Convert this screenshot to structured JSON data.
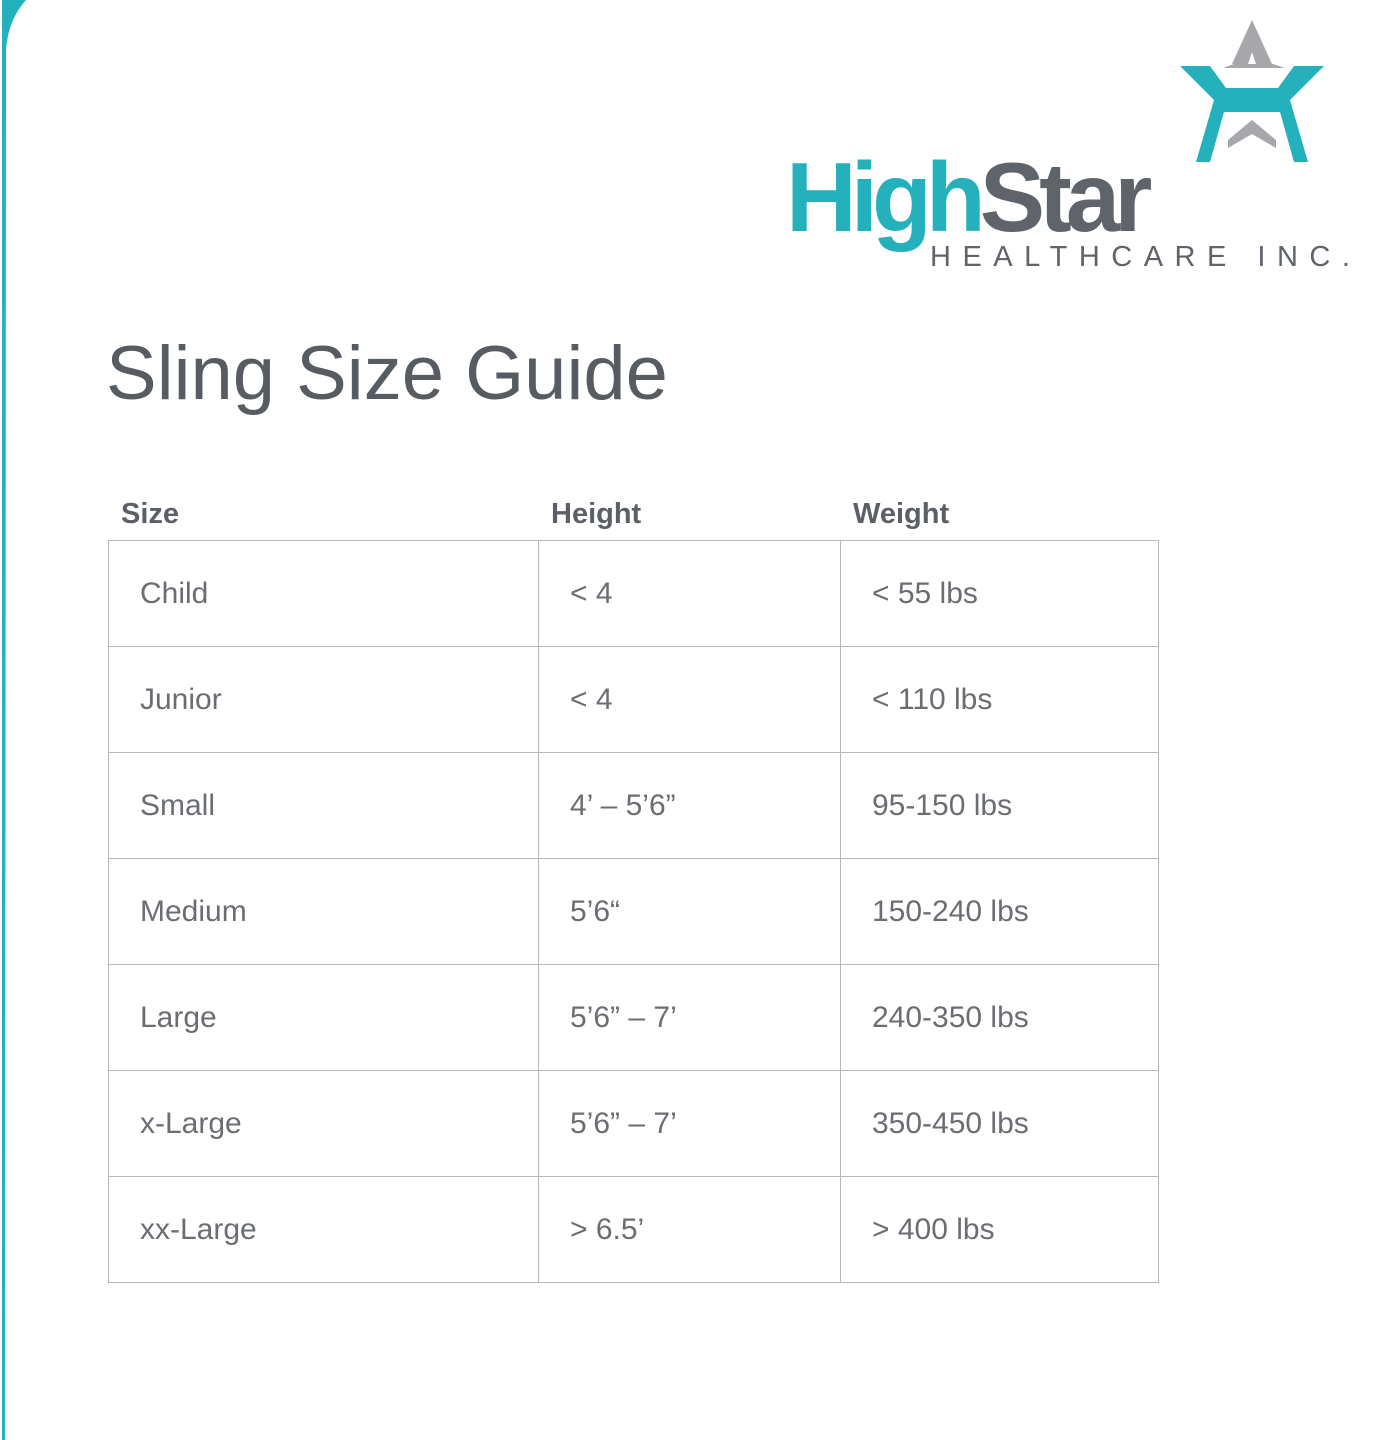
{
  "logo": {
    "brand_part1": "High",
    "brand_part2": "Star",
    "subtitle": "HEALTHCARE INC.",
    "colors": {
      "teal": "#24b1bb",
      "gray": "#5f646b",
      "star_gray": "#a5a7ab"
    }
  },
  "title": "Sling Size Guide",
  "table": {
    "headers": [
      "Size",
      "Height",
      "Weight"
    ],
    "rows": [
      [
        "Child",
        "< 4",
        "< 55 lbs"
      ],
      [
        "Junior",
        "< 4",
        "< 110 lbs"
      ],
      [
        "Small",
        "4’ – 5’6”",
        "95-150 lbs"
      ],
      [
        "Medium",
        "5’6“",
        "150-240 lbs"
      ],
      [
        "Large",
        "5’6” – 7’",
        "240-350 lbs"
      ],
      [
        "x-Large",
        "5’6” – 7’",
        "350-450 lbs"
      ],
      [
        "xx-Large",
        "> 6.5’",
        "> 400 lbs"
      ]
    ]
  }
}
